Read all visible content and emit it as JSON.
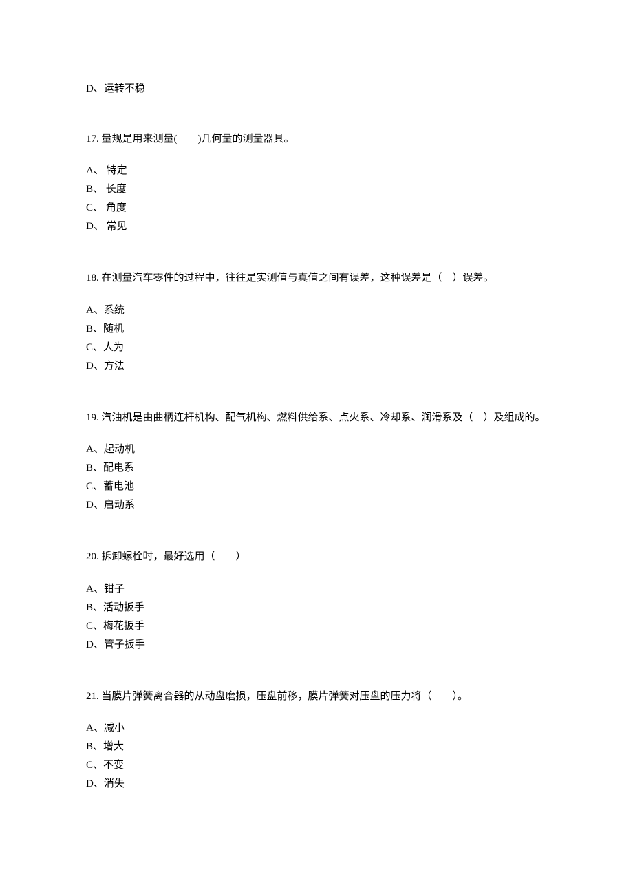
{
  "orphan_option": "D、运转不稳",
  "questions": [
    {
      "number": "17.",
      "text": "量规是用来测量(　　)几何量的测量器具。",
      "options": [
        "A、  特定",
        "B、  长度",
        "C、  角度",
        "D、  常见"
      ]
    },
    {
      "number": "18.",
      "text": "在测量汽车零件的过程中，往往是实测值与真值之间有误差，这种误差是（　）误差。",
      "options": [
        "A、系统",
        "B、随机",
        "C、人为",
        "D、方法"
      ]
    },
    {
      "number": "19.",
      "text": "汽油机是由曲柄连杆机构、配气机构、燃料供给系、点火系、冷却系、润滑系及（　）及组成的。",
      "options": [
        "A、起动机",
        "B、配电系",
        "C、蓄电池",
        "D、启动系"
      ]
    },
    {
      "number": "20.",
      "text": "拆卸螺栓时，最好选用（　　）",
      "options": [
        "A、钳子",
        "B、活动扳手",
        "C、梅花扳手",
        "D、管子扳手"
      ]
    },
    {
      "number": "21.",
      "text": "当膜片弹簧离合器的从动盘磨损，压盘前移，膜片弹簧对压盘的压力将（　　）。",
      "options": [
        "A、减小",
        "B、增大",
        "C、不变",
        "D、消失"
      ]
    }
  ]
}
